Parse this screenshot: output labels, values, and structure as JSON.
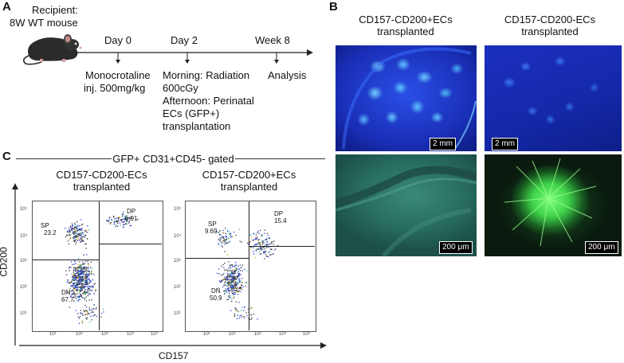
{
  "panel_a": {
    "label": "A",
    "recipient_line1": "Recipient:",
    "recipient_line2": "8W WT mouse",
    "timepoints": [
      {
        "title": "Day 0",
        "desc": [
          "Monocrotaline",
          "inj. 500mg/kg"
        ]
      },
      {
        "title": "Day 2",
        "desc": [
          "Morning: Radiation",
          "600cGy",
          "Afternoon: Perinatal",
          "ECs (GFP+)",
          "transplantation"
        ]
      },
      {
        "title": "Week 8",
        "desc": [
          "Analysis"
        ]
      }
    ]
  },
  "panel_b": {
    "label": "B",
    "col1_line1": "CD157-CD200+ECs",
    "col1_line2": "transplanted",
    "col2_line1": "CD157-CD200-ECs",
    "col2_line2": "transplanted",
    "scalebar_top": "2 mm",
    "scalebar_bottom": "200 μm"
  },
  "panel_c": {
    "label": "C",
    "gate_title": "GFP+ CD31+CD45- gated",
    "ylabel": "CD200",
    "xlabel": "CD157",
    "plot1_line1": "CD157-CD200-ECs",
    "plot1_line2": "transplanted",
    "plot2_line1": "CD157-CD200+ECs",
    "plot2_line2": "transplanted",
    "ticks_y": [
      "10⁵",
      "10⁴",
      "10³",
      "10²",
      "10¹"
    ],
    "ticks_x": [
      "10¹",
      "10²",
      "10³",
      "10⁴",
      "10⁵"
    ]
  },
  "chart_data": [
    {
      "type": "scatter",
      "title": "CD157-CD200-ECs transplanted",
      "xlabel": "CD157",
      "ylabel": "CD200",
      "xscale": "log",
      "yscale": "log",
      "gates": [
        {
          "name": "SP",
          "percent": "23.2"
        },
        {
          "name": "DP",
          "percent": "6.91"
        },
        {
          "name": "DN",
          "percent": "67.7"
        }
      ]
    },
    {
      "type": "scatter",
      "title": "CD157-CD200+ECs transplanted",
      "xlabel": "CD157",
      "ylabel": "CD200",
      "xscale": "log",
      "yscale": "log",
      "gates": [
        {
          "name": "SP",
          "percent": "9.69"
        },
        {
          "name": "DP",
          "percent": "15.4"
        },
        {
          "name": "DN",
          "percent": "50.9"
        }
      ]
    }
  ],
  "colors": {
    "fluor_blue": "#1a2fb8",
    "fluor_green": "#3fd34a",
    "dot_blue": "#2b3fd6"
  }
}
